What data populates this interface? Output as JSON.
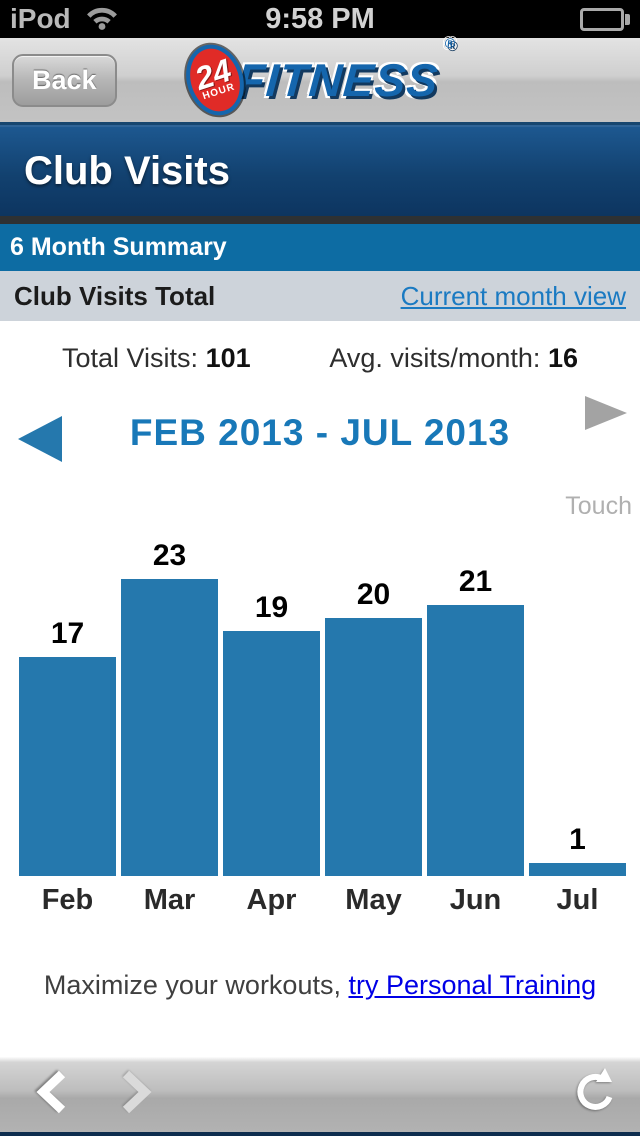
{
  "status_bar": {
    "carrier": "iPod",
    "time": "9:58 PM",
    "wifi_icon": "wifi",
    "battery_icon": "battery-full"
  },
  "navbar": {
    "back_label": "Back",
    "logo": {
      "badge_number": "24",
      "badge_word": "HOUR",
      "brand": "FITNESS",
      "registered": "®"
    }
  },
  "page": {
    "title": "Club Visits",
    "section_title": "6 Month Summary"
  },
  "summary": {
    "row_title": "Club Visits Total",
    "link": "Current month view",
    "total_label": "Total Visits:",
    "total_value": "101",
    "avg_label": "Avg. visits/month:",
    "avg_value": "16"
  },
  "period": {
    "title": "FEB 2013 - JUL 2013",
    "prev_icon": "previous-period-arrow",
    "next_icon": "next-period-arrow",
    "hint": "Touch"
  },
  "chart_data": {
    "type": "bar",
    "categories": [
      "Feb",
      "Mar",
      "Apr",
      "May",
      "Jun",
      "Jul"
    ],
    "values": [
      17,
      23,
      19,
      20,
      21,
      1
    ],
    "title": "FEB 2013 - JUL 2013",
    "xlabel": "",
    "ylabel": "",
    "ylim": [
      0,
      23
    ],
    "value_labels": true,
    "grid": false,
    "legend": false,
    "bar_color": "#2578ad"
  },
  "promo": {
    "text": "Maximize your workouts, ",
    "link": "try Personal Training"
  },
  "toolbar": {
    "back_icon": "back-chevron",
    "forward_icon": "forward-chevron",
    "refresh_icon": "refresh"
  },
  "colors": {
    "bar_blue": "#2578ad",
    "section_blue": "#0d6ca3",
    "subheader_gray": "#cdd3da",
    "link_blue": "#1a7ac2",
    "promo_link_blue": "#0000e6",
    "period_title_blue": "#1878b8",
    "logo_red": "#e02b27",
    "logo_blue": "#1566ad"
  }
}
